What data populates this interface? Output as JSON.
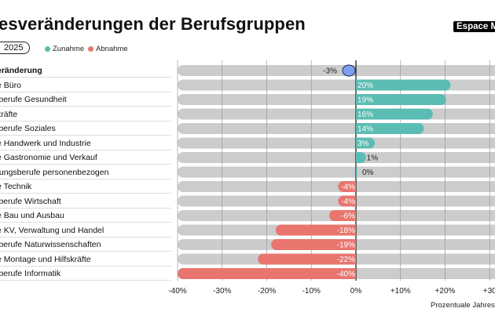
{
  "header": {
    "title": "esveränderungen der Berufsgruppen",
    "brand_badge": "Espace M",
    "year_pill": "2025"
  },
  "legend": [
    {
      "label": "Zunahme",
      "color": "#5bbcb3"
    },
    {
      "label": "Abnahme",
      "color": "#e8766e"
    }
  ],
  "colors": {
    "increase": "#5bbcb3",
    "decrease": "#e8766e",
    "total": "#7f9ff0",
    "track": "#cccccc"
  },
  "chart_data": {
    "type": "bar",
    "orientation": "horizontal",
    "categories": [
      "eränderung",
      "e Büro",
      "lberufe Gesundheit",
      "kräfte",
      "lberufe Soziales",
      "e Handwerk und Industrie",
      "e Gastronomie und Verkauf",
      "tungsberufe personenbezogen",
      "e Technik",
      "lberufe Wirtschaft",
      "e Bau und Ausbau",
      "e KV, Verwaltung und Handel",
      "lberufe Naturwissenschaften",
      "e Montage und Hilfskräfte",
      "lberufe Informatik"
    ],
    "values": [
      -3,
      20,
      19,
      16,
      14,
      3,
      1,
      0,
      -4,
      -4,
      -6,
      -18,
      -19,
      -22,
      -40
    ],
    "value_labels": [
      "-3%",
      "20%",
      "19%",
      "16%",
      "14%",
      "3%",
      "1%",
      "0%",
      "-4%",
      "-4%",
      "-6%",
      "-18%",
      "-19%",
      "-22%",
      "-40%"
    ],
    "xlim": [
      -40,
      31
    ],
    "xticks": [
      -40,
      -30,
      -20,
      -10,
      0,
      10,
      20,
      30
    ],
    "xtick_labels": [
      "-40%",
      "-30%",
      "-20%",
      "-10%",
      "0%",
      "+10%",
      "+20%",
      "+30"
    ],
    "xlabel": "Prozentuale Jahresv",
    "grid": true
  }
}
